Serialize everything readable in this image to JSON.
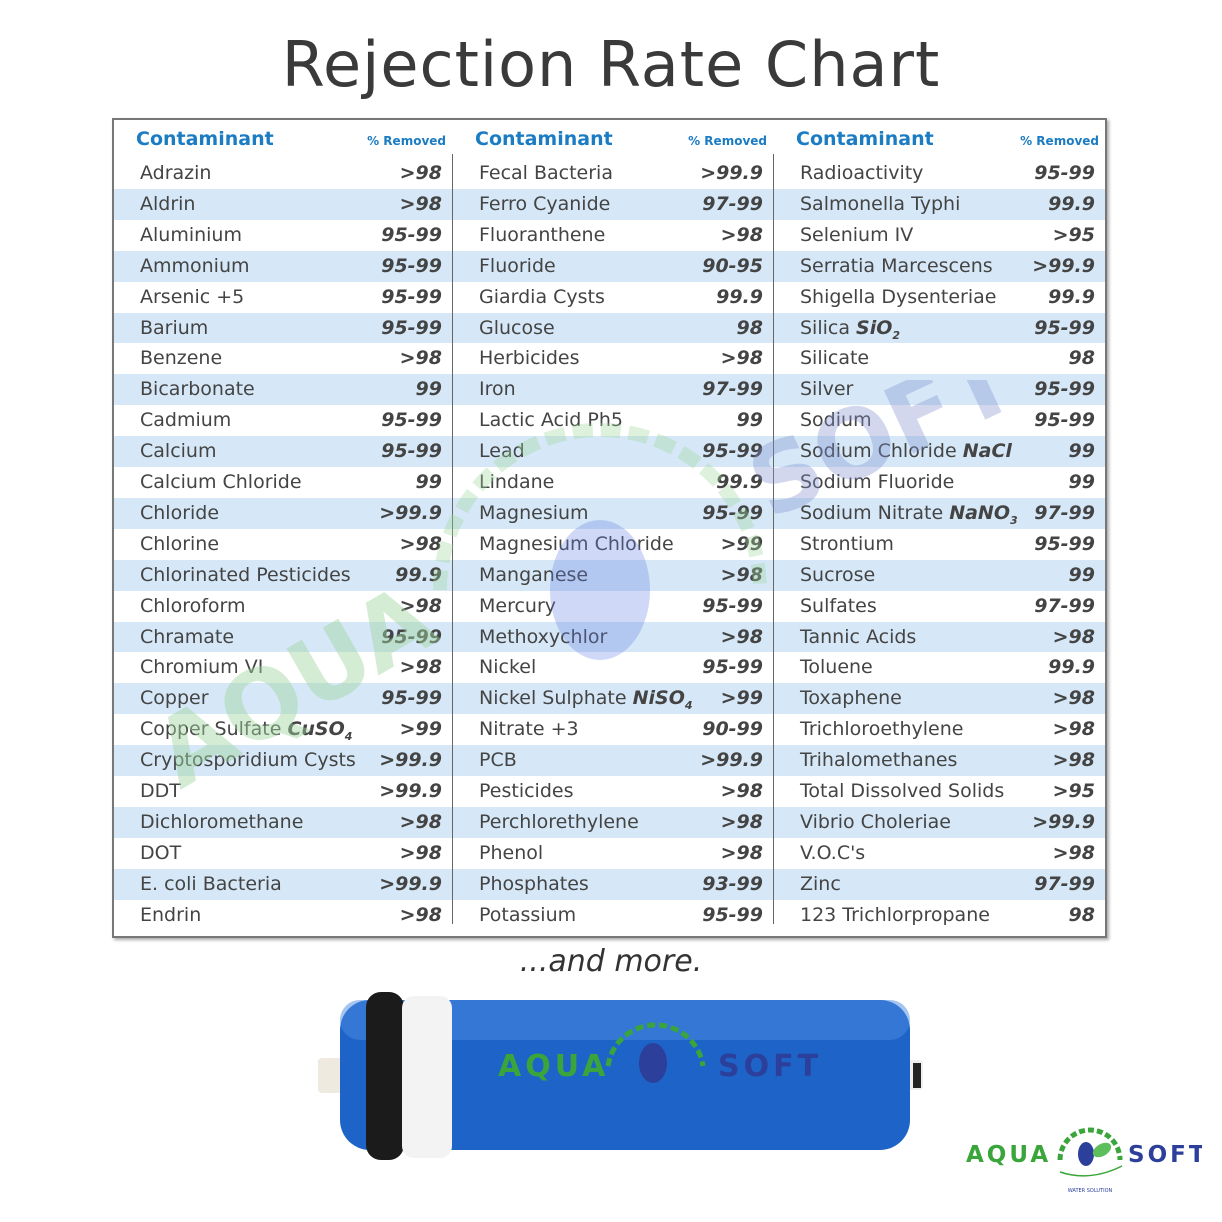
{
  "title": "Rejection Rate Chart",
  "headers": {
    "contaminant": "Contaminant",
    "removed": "% Removed"
  },
  "columns": [
    [
      {
        "name": "Adrazin",
        "value": ">98"
      },
      {
        "name": "Aldrin",
        "value": ">98"
      },
      {
        "name": "Aluminium",
        "value": "95-99"
      },
      {
        "name": "Ammonium",
        "value": "95-99"
      },
      {
        "name": "Arsenic +5",
        "value": "95-99"
      },
      {
        "name": "Barium",
        "value": "95-99"
      },
      {
        "name": "Benzene",
        "value": ">98"
      },
      {
        "name": "Bicarbonate",
        "value": "99"
      },
      {
        "name": "Cadmium",
        "value": "95-99"
      },
      {
        "name": "Calcium",
        "value": "95-99"
      },
      {
        "name": "Calcium Chloride",
        "value": "99"
      },
      {
        "name": "Chloride",
        "value": ">99.9"
      },
      {
        "name": "Chlorine",
        "value": ">98"
      },
      {
        "name": "Chlorinated Pesticides",
        "value": "99.9"
      },
      {
        "name": "Chloroform",
        "value": ">98"
      },
      {
        "name": "Chramate",
        "value": "95-99"
      },
      {
        "name": "Chromium VI",
        "value": ">98"
      },
      {
        "name": "Copper",
        "value": "95-99"
      },
      {
        "name": "Copper Sulfate",
        "formula": "CuSO",
        "sub": "4",
        "value": ">99"
      },
      {
        "name": "Cryptosporidium Cysts",
        "value": ">99.9"
      },
      {
        "name": "DDT",
        "value": ">99.9"
      },
      {
        "name": "Dichloromethane",
        "value": ">98"
      },
      {
        "name": "DOT",
        "value": ">98"
      },
      {
        "name": "E. coli Bacteria",
        "value": ">99.9"
      },
      {
        "name": "Endrin",
        "value": ">98"
      }
    ],
    [
      {
        "name": "Fecal Bacteria",
        "value": ">99.9"
      },
      {
        "name": "Ferro Cyanide",
        "value": "97-99"
      },
      {
        "name": "Fluoranthene",
        "value": ">98"
      },
      {
        "name": "Fluoride",
        "value": "90-95"
      },
      {
        "name": "Giardia Cysts",
        "value": "99.9"
      },
      {
        "name": "Glucose",
        "value": "98"
      },
      {
        "name": "Herbicides",
        "value": ">98"
      },
      {
        "name": "Iron",
        "value": "97-99"
      },
      {
        "name": "Lactic Acid Ph5",
        "value": "99"
      },
      {
        "name": "Lead",
        "value": "95-99"
      },
      {
        "name": "Lindane",
        "value": "99.9"
      },
      {
        "name": "Magnesium",
        "value": "95-99"
      },
      {
        "name": "Magnesium Chloride",
        "value": ">99"
      },
      {
        "name": "Manganese",
        "value": ">98"
      },
      {
        "name": "Mercury",
        "value": "95-99"
      },
      {
        "name": "Methoxychlor",
        "value": ">98"
      },
      {
        "name": "Nickel",
        "value": "95-99"
      },
      {
        "name": "Nickel Sulphate",
        "formula": "NiSO",
        "sub": "4",
        "value": ">99"
      },
      {
        "name": "Nitrate +3",
        "value": "90-99"
      },
      {
        "name": "PCB",
        "value": ">99.9"
      },
      {
        "name": "Pesticides",
        "value": ">98"
      },
      {
        "name": "Perchlorethylene",
        "value": ">98"
      },
      {
        "name": "Phenol",
        "value": ">98"
      },
      {
        "name": "Phosphates",
        "value": "93-99"
      },
      {
        "name": "Potassium",
        "value": "95-99"
      }
    ],
    [
      {
        "name": "Radioactivity",
        "value": "95-99"
      },
      {
        "name": "Salmonella Typhi",
        "value": "99.9"
      },
      {
        "name": "Selenium IV",
        "value": ">95"
      },
      {
        "name": "Serratia Marcescens",
        "value": ">99.9"
      },
      {
        "name": "Shigella Dysenteriae",
        "value": "99.9"
      },
      {
        "name": "Silica",
        "formula": "SiO",
        "sub": "2",
        "value": "95-99"
      },
      {
        "name": "Silicate",
        "value": "98"
      },
      {
        "name": "Silver",
        "value": "95-99"
      },
      {
        "name": "Sodium",
        "value": "95-99"
      },
      {
        "name": "Sodium Chloride",
        "formula": "NaCl",
        "value": "99"
      },
      {
        "name": "Sodium Fluoride",
        "value": "99"
      },
      {
        "name": "Sodium Nitrate",
        "formula": "NaNO",
        "sub": "3",
        "value": "97-99"
      },
      {
        "name": "Strontium",
        "value": "95-99"
      },
      {
        "name": "Sucrose",
        "value": "99"
      },
      {
        "name": "Sulfates",
        "value": "97-99"
      },
      {
        "name": "Tannic Acids",
        "value": ">98"
      },
      {
        "name": "Toluene",
        "value": "99.9"
      },
      {
        "name": "Toxaphene",
        "value": ">98"
      },
      {
        "name": "Trichloroethylene",
        "value": ">98"
      },
      {
        "name": "Trihalomethanes",
        "value": ">98"
      },
      {
        "name": "Total Dissolved Solids",
        "value": ">95"
      },
      {
        "name": "Vibrio Choleriae",
        "value": ">99.9"
      },
      {
        "name": "V.O.C's",
        "value": ">98"
      },
      {
        "name": "Zinc",
        "value": "97-99"
      },
      {
        "name": "123 Trichlorpropane",
        "value": "98"
      }
    ]
  ],
  "more_text": "...and more.",
  "logo": {
    "left": "AQUA",
    "right": "SOFT",
    "tagline": "WATER SOLUTION"
  },
  "watermark": {
    "left": "AQUA",
    "right": "SOFT",
    "tagline": "WATER SOLUTION"
  },
  "colors": {
    "header": "#1b7cc4",
    "stripe": "#d6e8f7",
    "membrane": "#1e63c8",
    "logo_green": "#3aa53a",
    "logo_blue": "#2c3f9a"
  }
}
